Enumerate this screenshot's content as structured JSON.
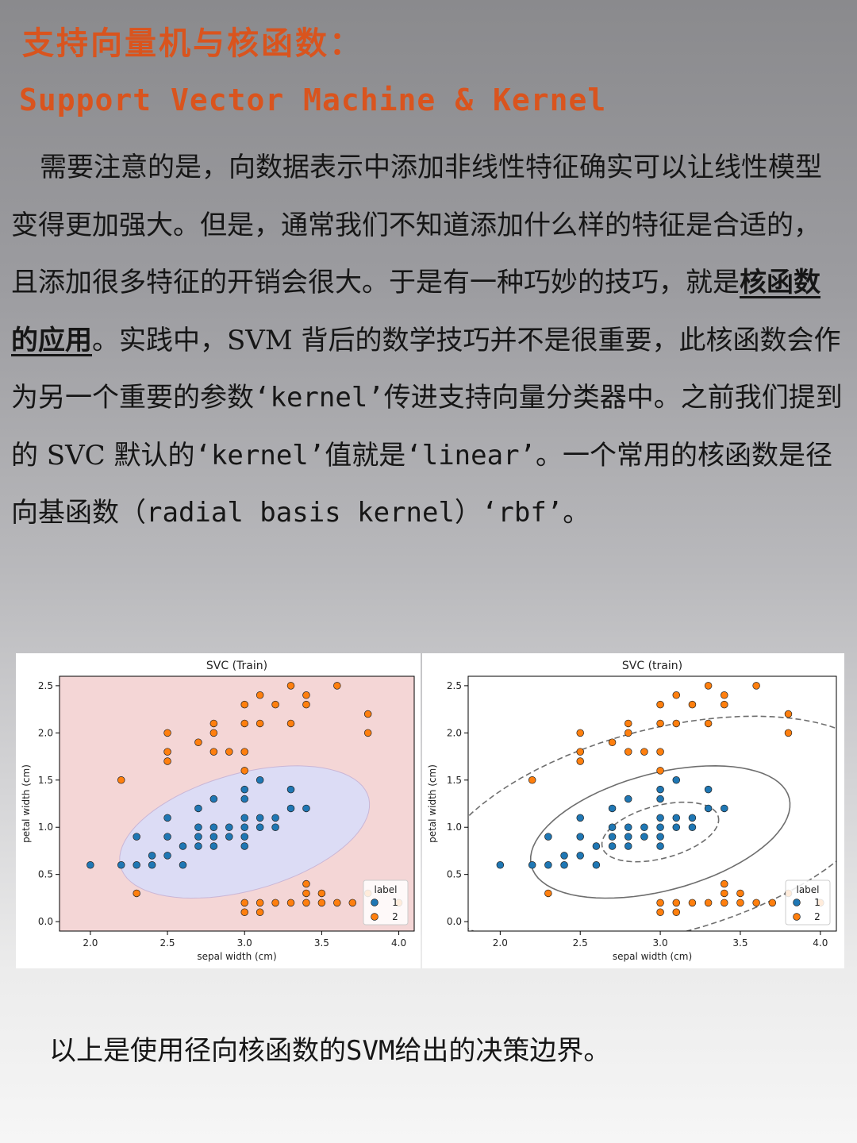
{
  "title_cn": "支持向量机与核函数：",
  "title_en": "Support Vector Machine & Kernel",
  "paragraph": {
    "p1": "需要注意的是，向数据表示中添加非线性特征确实可以让线性模型变得更加强大。但是，通常我们不知道添加什么样的特征是合适的，且添加很多特征的开销会很大。于是有一种巧妙的技巧，就是",
    "emph": "核函数的应用",
    "p2": "。实践中，SVM 背后的数学技巧并不是很重要，此核函数会作为另一个重要的参数",
    "k1": "‘kernel’",
    "p3": "传进支持向量分类器中。之前我们提到的 SVC 默认的",
    "k2": "‘kernel’",
    "p4": "值就是",
    "k3": "‘linear’",
    "p5": "。一个常用的核函数是径向基函数",
    "k4": "（radial basis kernel）‘rbf’",
    "p6": "。"
  },
  "caption": {
    "text": "以上是使用径向核函数的",
    "svm": "SVM",
    "rest": "给出的决策边界。"
  },
  "colors": {
    "title": "#d9541e",
    "class1": "#1f77b4",
    "class2": "#ff7f0e",
    "region1": "#dcdcf5",
    "region2": "#f4d6d6",
    "contour": "#6e6e6e"
  },
  "chart_data": [
    {
      "type": "scatter",
      "title": "SVC (Train)",
      "xlabel": "sepal width (cm)",
      "ylabel": "petal width (cm)",
      "xlim": [
        1.8,
        4.1
      ],
      "ylim": [
        -0.1,
        2.6
      ],
      "xticks": [
        "2.0",
        "2.5",
        "3.0",
        "3.5",
        "4.0"
      ],
      "yticks": [
        "0.0",
        "0.5",
        "1.0",
        "1.5",
        "2.0",
        "2.5"
      ],
      "background": "decision regions",
      "legend": {
        "title": "label",
        "placement": "lower-right",
        "entries": [
          "1",
          "2"
        ]
      },
      "grid": false
    },
    {
      "type": "scatter",
      "title": "SVC (train)",
      "xlabel": "sepal width (cm)",
      "ylabel": "petal width (cm)",
      "xlim": [
        1.8,
        4.1
      ],
      "ylim": [
        -0.1,
        2.6
      ],
      "xticks": [
        "2.0",
        "2.5",
        "3.0",
        "3.5",
        "4.0"
      ],
      "yticks": [
        "0.0",
        "0.5",
        "1.0",
        "1.5",
        "2.0",
        "2.5"
      ],
      "background": "decision function contours",
      "legend": {
        "title": "label",
        "placement": "lower-right",
        "entries": [
          "1",
          "2"
        ]
      },
      "grid": false
    }
  ],
  "series": [
    {
      "name": "1",
      "points": [
        [
          2.0,
          0.6
        ],
        [
          2.2,
          0.6
        ],
        [
          2.3,
          0.9
        ],
        [
          2.3,
          0.6
        ],
        [
          2.4,
          0.7
        ],
        [
          2.4,
          0.6
        ],
        [
          2.5,
          1.1
        ],
        [
          2.5,
          0.9
        ],
        [
          2.5,
          0.7
        ],
        [
          2.6,
          0.8
        ],
        [
          2.6,
          0.6
        ],
        [
          2.7,
          1.2
        ],
        [
          2.7,
          1.0
        ],
        [
          2.7,
          0.9
        ],
        [
          2.7,
          0.8
        ],
        [
          2.8,
          1.3
        ],
        [
          2.8,
          1.0
        ],
        [
          2.8,
          0.9
        ],
        [
          2.8,
          0.8
        ],
        [
          2.9,
          1.0
        ],
        [
          2.9,
          0.9
        ],
        [
          3.0,
          1.4
        ],
        [
          3.0,
          1.3
        ],
        [
          3.0,
          1.1
        ],
        [
          3.0,
          1.0
        ],
        [
          3.0,
          0.9
        ],
        [
          3.0,
          0.8
        ],
        [
          3.1,
          1.5
        ],
        [
          3.1,
          1.1
        ],
        [
          3.1,
          1.0
        ],
        [
          3.2,
          1.1
        ],
        [
          3.2,
          1.0
        ],
        [
          3.3,
          1.4
        ],
        [
          3.3,
          1.2
        ],
        [
          3.4,
          1.2
        ]
      ]
    },
    {
      "name": "2",
      "points": [
        [
          2.2,
          1.5
        ],
        [
          2.3,
          0.3
        ],
        [
          2.5,
          2.0
        ],
        [
          2.5,
          1.8
        ],
        [
          2.5,
          1.7
        ],
        [
          2.7,
          1.9
        ],
        [
          2.8,
          2.1
        ],
        [
          2.8,
          2.0
        ],
        [
          2.8,
          1.8
        ],
        [
          2.9,
          1.8
        ],
        [
          3.0,
          2.3
        ],
        [
          3.0,
          2.1
        ],
        [
          3.0,
          1.8
        ],
        [
          3.0,
          1.6
        ],
        [
          3.0,
          0.2
        ],
        [
          3.0,
          0.1
        ],
        [
          3.1,
          2.4
        ],
        [
          3.1,
          2.1
        ],
        [
          3.1,
          0.2
        ],
        [
          3.1,
          0.1
        ],
        [
          3.2,
          2.3
        ],
        [
          3.2,
          0.2
        ],
        [
          3.3,
          2.5
        ],
        [
          3.3,
          2.1
        ],
        [
          3.3,
          0.2
        ],
        [
          3.4,
          2.4
        ],
        [
          3.4,
          2.3
        ],
        [
          3.4,
          0.4
        ],
        [
          3.4,
          0.3
        ],
        [
          3.4,
          0.2
        ],
        [
          3.5,
          0.3
        ],
        [
          3.5,
          0.2
        ],
        [
          3.6,
          2.5
        ],
        [
          3.6,
          0.2
        ],
        [
          3.7,
          0.2
        ],
        [
          3.8,
          2.2
        ],
        [
          3.8,
          2.0
        ],
        [
          3.8,
          0.3
        ],
        [
          4.0,
          0.2
        ]
      ]
    }
  ]
}
